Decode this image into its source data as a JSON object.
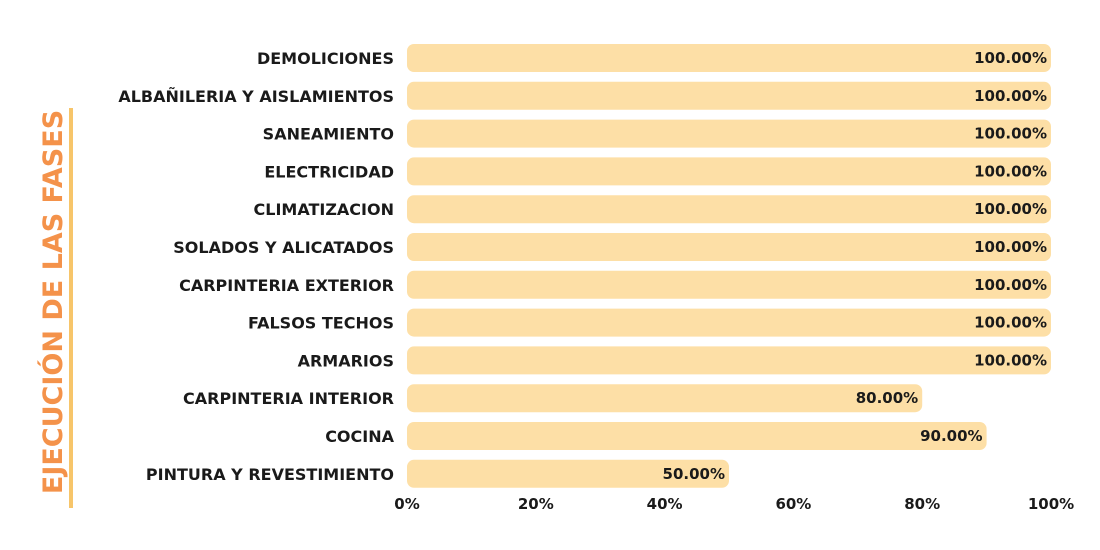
{
  "colors": {
    "bar": "#fddfa6",
    "title": "#f4924a",
    "title_rule": "#f7c56a",
    "text": "#1a1a1a"
  },
  "chart_data": {
    "type": "bar",
    "orientation": "horizontal",
    "side_title": "EJECUCIÓN DE LAS FASES",
    "categories": [
      "DEMOLICIONES",
      "ALBAÑILERIA Y AISLAMIENTOS",
      "SANEAMIENTO",
      "ELECTRICIDAD",
      "CLIMATIZACION",
      "SOLADOS Y ALICATADOS",
      "CARPINTERIA EXTERIOR",
      "FALSOS TECHOS",
      "ARMARIOS",
      "CARPINTERIA INTERIOR",
      "COCINA",
      "PINTURA Y REVESTIMIENTO"
    ],
    "values": [
      100,
      100,
      100,
      100,
      100,
      100,
      100,
      100,
      100,
      80,
      90,
      50
    ],
    "data_labels": [
      "100.00%",
      "100.00%",
      "100.00%",
      "100.00%",
      "100.00%",
      "100.00%",
      "100.00%",
      "100.00%",
      "100.00%",
      "80.00%",
      "90.00%",
      "50.00%"
    ],
    "xlim": [
      0,
      100
    ],
    "x_ticks": [
      0,
      20,
      40,
      60,
      80,
      100
    ],
    "x_tick_labels": [
      "0%",
      "20%",
      "40%",
      "60%",
      "80%",
      "100%"
    ],
    "grid": false,
    "legend": "none"
  }
}
